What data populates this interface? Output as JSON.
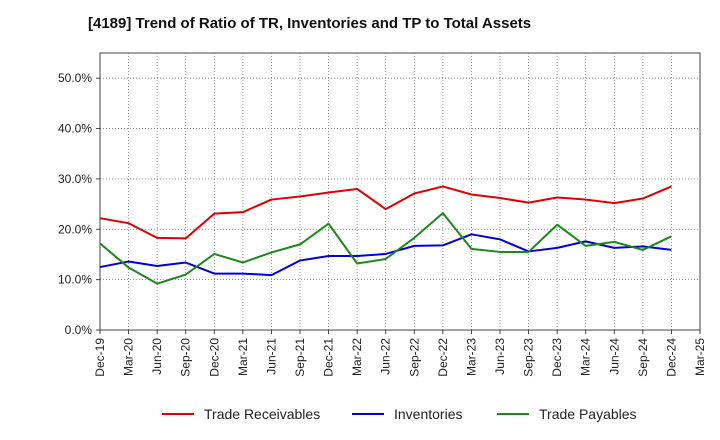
{
  "chart_data": {
    "type": "line",
    "title": "[4189]  Trend of Ratio of TR, Inventories and TP to Total Assets",
    "x": [
      "Dec-19",
      "Mar-20",
      "Jun-20",
      "Sep-20",
      "Dec-20",
      "Mar-21",
      "Jun-21",
      "Sep-21",
      "Dec-21",
      "Mar-22",
      "Jun-22",
      "Sep-22",
      "Dec-22",
      "Mar-23",
      "Jun-23",
      "Sep-23",
      "Dec-23",
      "Mar-24",
      "Jun-24",
      "Sep-24",
      "Dec-24"
    ],
    "x_ticks": [
      "Dec-19",
      "Mar-20",
      "Jun-20",
      "Sep-20",
      "Dec-20",
      "Mar-21",
      "Jun-21",
      "Sep-21",
      "Dec-21",
      "Mar-22",
      "Jun-22",
      "Sep-22",
      "Dec-22",
      "Mar-23",
      "Jun-23",
      "Sep-23",
      "Dec-23",
      "Mar-24",
      "Jun-24",
      "Sep-24",
      "Dec-24",
      "Mar-25"
    ],
    "ylim": [
      0,
      55
    ],
    "y_ticks": [
      "0.0%",
      "10.0%",
      "20.0%",
      "30.0%",
      "40.0%",
      "50.0%"
    ],
    "y_tick_values": [
      0,
      10,
      20,
      30,
      40,
      50
    ],
    "grid": true,
    "legend_position": "bottom",
    "series": [
      {
        "name": "Trade Receivables",
        "color": "#e00000",
        "values": [
          22.2,
          21.2,
          18.3,
          18.2,
          23.1,
          23.4,
          25.9,
          26.5,
          27.3,
          28.0,
          24.0,
          27.1,
          28.5,
          26.9,
          26.2,
          25.3,
          26.3,
          25.9,
          25.2,
          26.1,
          28.5
        ]
      },
      {
        "name": "Inventories",
        "color": "#0000d8",
        "values": [
          12.5,
          13.6,
          12.7,
          13.4,
          11.2,
          11.2,
          10.9,
          13.8,
          14.7,
          14.7,
          15.1,
          16.7,
          16.8,
          19.0,
          18.0,
          15.6,
          16.3,
          17.6,
          16.3,
          16.6,
          15.9
        ]
      },
      {
        "name": "Trade Payables",
        "color": "#1a8a1a",
        "values": [
          17.2,
          12.4,
          9.2,
          11.0,
          15.1,
          13.4,
          15.4,
          17.0,
          21.1,
          13.2,
          14.1,
          18.3,
          23.2,
          16.1,
          15.5,
          15.5,
          20.9,
          16.7,
          17.5,
          15.9,
          18.6
        ]
      }
    ]
  }
}
